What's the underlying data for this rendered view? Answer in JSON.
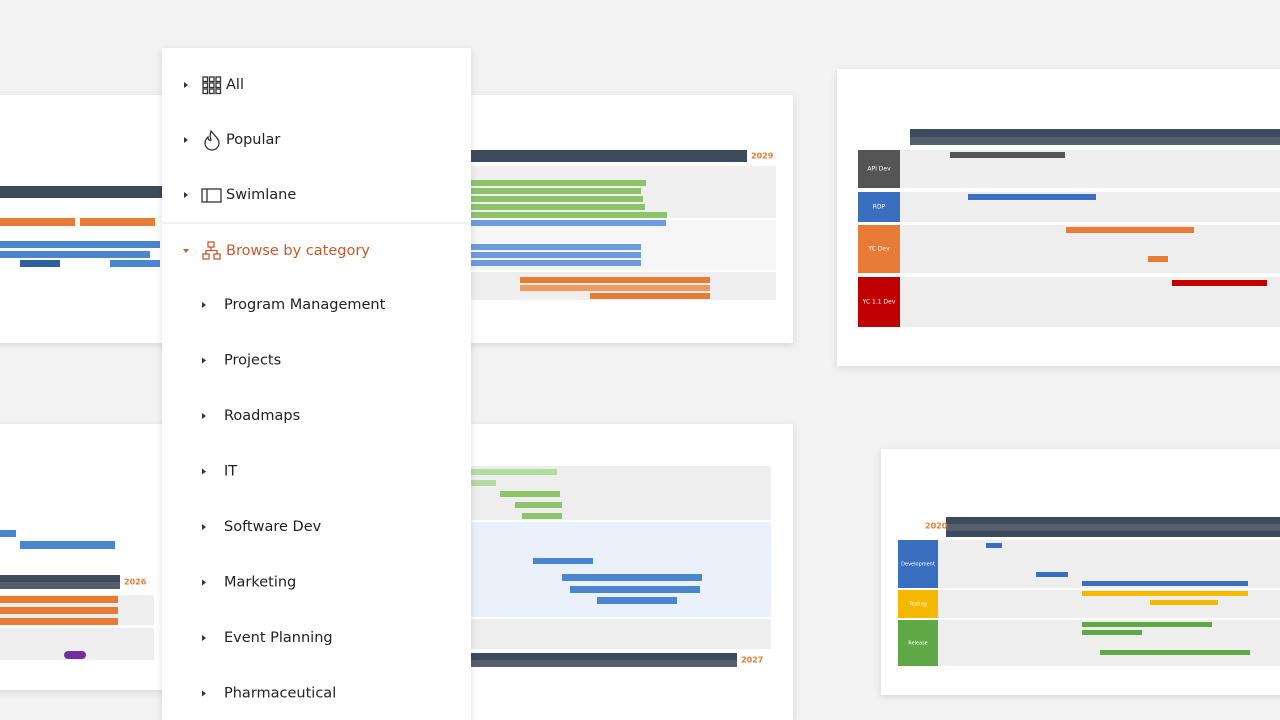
{
  "menu": {
    "top_items": [
      {
        "label": "All"
      },
      {
        "label": "Popular"
      },
      {
        "label": "Swimlane"
      },
      {
        "label": "Browse by category"
      }
    ],
    "categories": [
      "Program Management",
      "Projects",
      "Roadmaps",
      "IT",
      "Software Dev",
      "Marketing",
      "Event Planning",
      "Pharmaceutical"
    ]
  },
  "thumbnails": {
    "top_middle_year": "2029",
    "top_right_lanes": [
      "API Dev",
      "RDP",
      "YC Dev",
      "YC 1.1 Dev"
    ],
    "bottom_left_year": "2026",
    "bottom_middle_year": "2027",
    "bottom_right_year": "2020",
    "bottom_right_lanes": [
      "Development",
      "Testing",
      "Release"
    ]
  }
}
